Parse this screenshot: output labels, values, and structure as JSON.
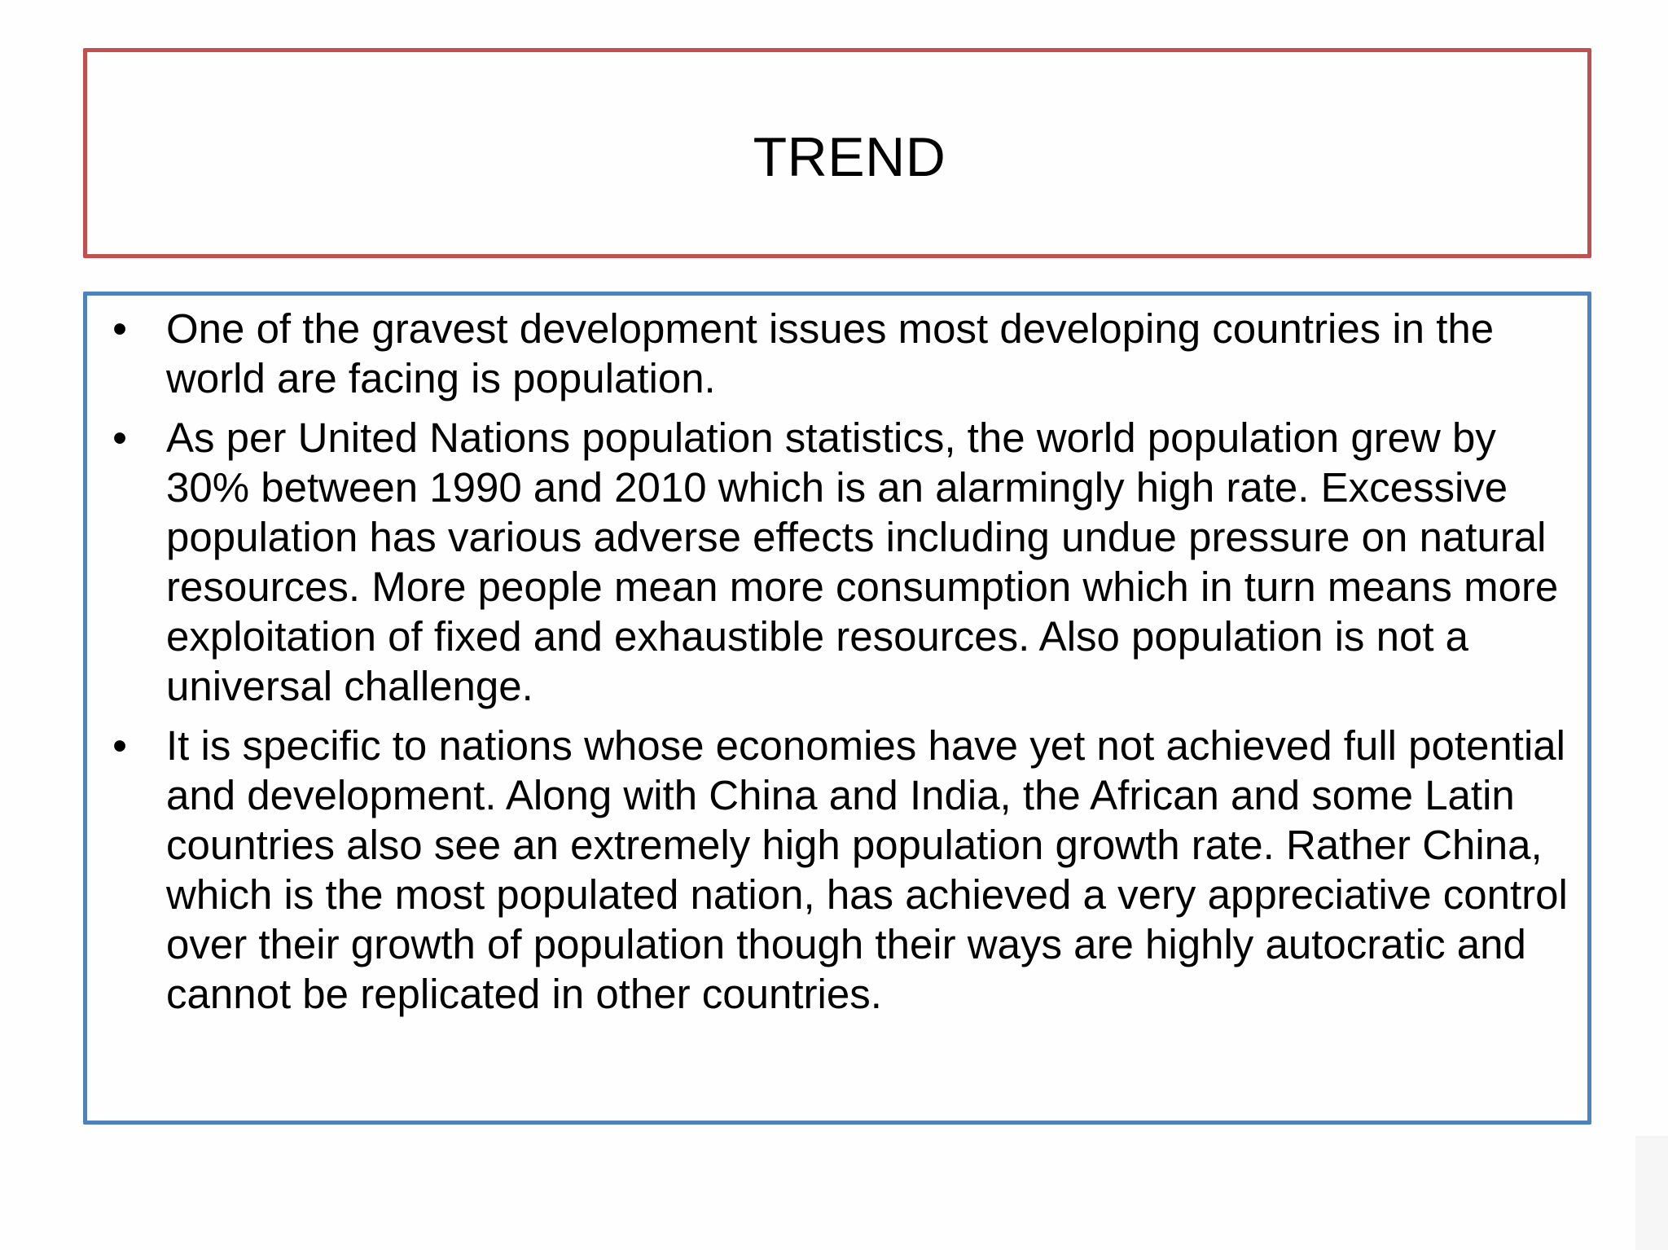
{
  "slide": {
    "title": "TREND",
    "bullets": [
      {
        "marker": "•",
        "text": "One of the gravest development issues most developing countries in the world are facing is population."
      },
      {
        "marker": "•",
        "text": "As per United Nations population statistics, the world population grew by 30% between 1990 and 2010 which is an alarmingly high rate. Excessive population has various adverse effects including undue pressure on natural resources. More people mean more consumption which in turn means more exploitation of fixed and exhaustible resources. Also population is not a universal challenge."
      },
      {
        "marker": "•",
        "text": "It is specific to nations whose economies have yet not achieved full potential and development. Along with China and India, the African and some Latin countries also see an extremely high population growth rate. Rather China, which is the most populated nation, has achieved a very appreciative control over their growth of population though their ways are highly autocratic and cannot be replicated in other countries."
      }
    ]
  },
  "colors": {
    "title_border": "#c0504d",
    "content_border": "#4f81bd",
    "background": "#fefefe",
    "text": "#000000"
  }
}
